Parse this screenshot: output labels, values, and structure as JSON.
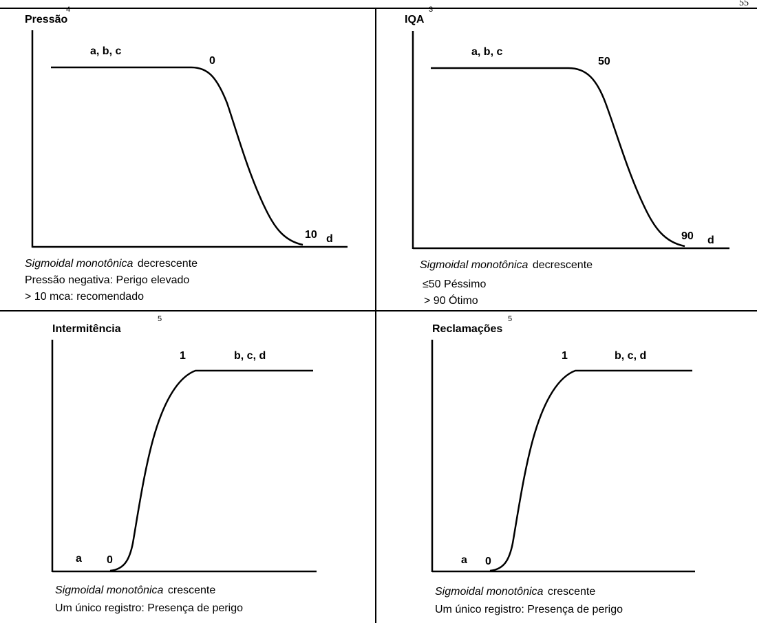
{
  "page": {
    "number": "55"
  },
  "chart_data": [
    {
      "type": "line",
      "shape": "sigmoidal-decreasing",
      "title": "",
      "ylabel": "Pressão",
      "ylabel_sup": "4",
      "xlabel": "d",
      "plateau_label": "a, b, c",
      "key_points": [
        {
          "label": "0"
        },
        {
          "label": "10"
        }
      ],
      "caption_italic": "Sigmoidal monotônica",
      "caption_rest": "decrescente",
      "notes": [
        "Pressão negativa: Perigo elevado",
        "> 10 mca: recomendado"
      ]
    },
    {
      "type": "line",
      "shape": "sigmoidal-decreasing",
      "title": "",
      "ylabel": "IQA",
      "ylabel_sup": "3",
      "xlabel": "d",
      "plateau_label": "a, b, c",
      "key_points": [
        {
          "label": "50"
        },
        {
          "label": "90"
        }
      ],
      "caption_italic": "Sigmoidal monotônica",
      "caption_rest": "decrescente",
      "notes": [
        "≤50 Péssimo",
        "> 90 Ótimo"
      ]
    },
    {
      "type": "line",
      "shape": "sigmoidal-increasing",
      "title": "",
      "ylabel": "Intermitência",
      "ylabel_sup": "5",
      "xlabel": "",
      "low_label": "a",
      "plateau_label": "b, c, d",
      "key_points": [
        {
          "label": "0"
        },
        {
          "label": "1"
        }
      ],
      "caption_italic": "Sigmoidal monotônica",
      "caption_rest": "crescente",
      "notes": [
        "Um único registro: Presença de perigo"
      ]
    },
    {
      "type": "line",
      "shape": "sigmoidal-increasing",
      "title": "",
      "ylabel": "Reclamações",
      "ylabel_sup": "5",
      "xlabel": "",
      "low_label": "a",
      "plateau_label": "b, c, d",
      "key_points": [
        {
          "label": "0"
        },
        {
          "label": "1"
        }
      ],
      "caption_italic": "Sigmoidal monotônica",
      "caption_rest": "crescente",
      "notes": [
        "Um único registro: Presença de perigo"
      ]
    }
  ]
}
